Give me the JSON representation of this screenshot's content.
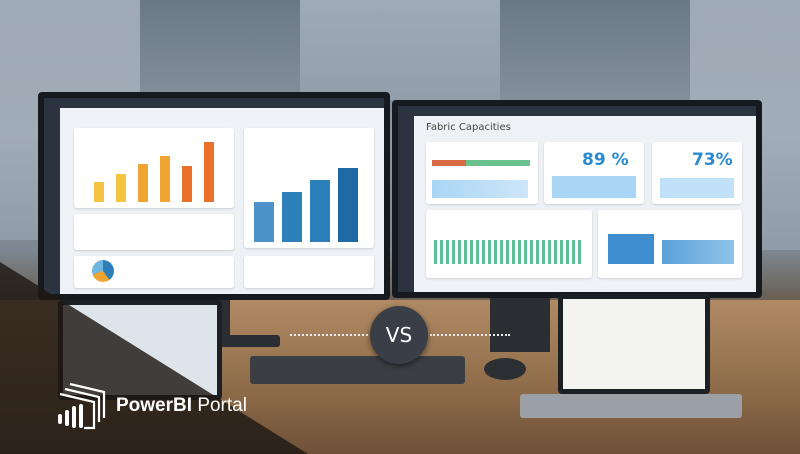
{
  "left_monitor": {
    "colors": {
      "bars": [
        "#f5c342",
        "#f0a431",
        "#e9712a"
      ],
      "accent": "#2c7fb8"
    }
  },
  "right_monitor": {
    "title": "Fabric Capacities",
    "cpu_card_1": {
      "value": "89 %"
    },
    "cpu_card_2": {
      "value": "73%"
    }
  },
  "versus": {
    "label": "VS"
  },
  "brand": {
    "name_bold": "PowerBI",
    "name_regular": "Portal",
    "icon": "powerbi-logo-icon"
  }
}
